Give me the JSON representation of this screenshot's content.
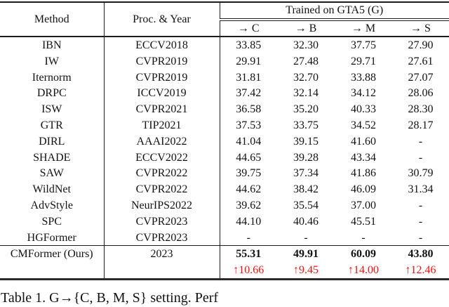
{
  "table": {
    "header": {
      "method": "Method",
      "proc_year": "Proc. & Year",
      "group": "Trained on GTA5 (G)",
      "subcols": [
        "→ C",
        "→ B",
        "→ M",
        "→ S"
      ]
    },
    "rows": [
      {
        "method": "IBN",
        "venue": "ECCV2018",
        "values": [
          "33.85",
          "32.30",
          "37.75",
          "27.90"
        ]
      },
      {
        "method": "IW",
        "venue": "CVPR2019",
        "values": [
          "29.91",
          "27.48",
          "29.71",
          "27.61"
        ]
      },
      {
        "method": "Iternorm",
        "venue": "CVPR2019",
        "values": [
          "31.81",
          "32.70",
          "33.88",
          "27.07"
        ]
      },
      {
        "method": "DRPC",
        "venue": "ICCV2019",
        "values": [
          "37.42",
          "32.14",
          "34.12",
          "28.06"
        ]
      },
      {
        "method": "ISW",
        "venue": "CVPR2021",
        "values": [
          "36.58",
          "35.20",
          "40.33",
          "28.30"
        ]
      },
      {
        "method": "GTR",
        "venue": "TIP2021",
        "values": [
          "37.53",
          "33.75",
          "34.52",
          "28.17"
        ]
      },
      {
        "method": "DIRL",
        "venue": "AAAI2022",
        "values": [
          "41.04",
          "39.15",
          "41.60",
          "-"
        ]
      },
      {
        "method": "SHADE",
        "venue": "ECCV2022",
        "values": [
          "44.65",
          "39.28",
          "43.34",
          "-"
        ]
      },
      {
        "method": "SAW",
        "venue": "CVPR2022",
        "values": [
          "39.75",
          "37.34",
          "41.86",
          "30.79"
        ]
      },
      {
        "method": "WildNet",
        "venue": "CVPR2022",
        "values": [
          "44.62",
          "38.42",
          "46.09",
          "31.34"
        ]
      },
      {
        "method": "AdvStyle",
        "venue": "NeurIPS2022",
        "values": [
          "39.62",
          "35.54",
          "37.00",
          "-"
        ]
      },
      {
        "method": "SPC",
        "venue": "CVPR2023",
        "values": [
          "44.10",
          "40.46",
          "45.51",
          "-"
        ]
      },
      {
        "method": "HGFormer",
        "venue": "CVPR2023",
        "values": [
          "-",
          "-",
          "-",
          "-"
        ]
      }
    ],
    "highlight_row": {
      "method": "CMFormer (Ours)",
      "venue": "2023",
      "values": [
        "55.31",
        "49.91",
        "60.09",
        "43.80"
      ]
    },
    "improvement_row": {
      "values": [
        "↑10.66",
        "↑9.45",
        "↑14.00",
        "↑12.46"
      ]
    },
    "colors": {
      "improvement": "#f70d0d",
      "text": "#121212"
    }
  },
  "caption": "Table 1. G→{C, B, M, S} setting. Perf"
}
